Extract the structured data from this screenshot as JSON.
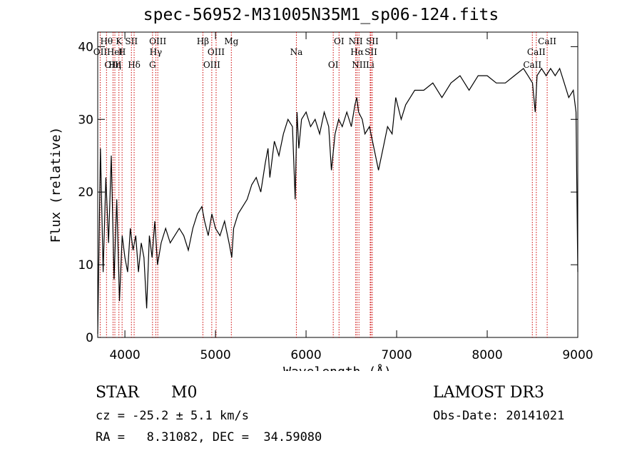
{
  "chart_data": {
    "type": "line",
    "title": "spec-56952-M31005N35M1_sp06-124.fits",
    "xlabel": "Wavelength (Å)",
    "ylabel": "Flux (relative)",
    "xlim": [
      3700,
      9000
    ],
    "ylim": [
      0,
      42
    ],
    "xticks": [
      4000,
      5000,
      6000,
      7000,
      8000,
      9000
    ],
    "yticks": [
      0,
      10,
      20,
      30,
      40
    ],
    "x": [
      3700,
      3730,
      3760,
      3790,
      3820,
      3850,
      3880,
      3910,
      3940,
      3970,
      4000,
      4030,
      4060,
      4090,
      4120,
      4150,
      4180,
      4210,
      4240,
      4270,
      4300,
      4330,
      4360,
      4400,
      4450,
      4500,
      4550,
      4600,
      4650,
      4700,
      4750,
      4800,
      4850,
      4880,
      4920,
      4960,
      5000,
      5050,
      5100,
      5150,
      5180,
      5200,
      5250,
      5300,
      5350,
      5400,
      5450,
      5500,
      5550,
      5580,
      5600,
      5650,
      5700,
      5750,
      5800,
      5850,
      5880,
      5900,
      5920,
      5950,
      6000,
      6050,
      6100,
      6150,
      6200,
      6250,
      6280,
      6320,
      6360,
      6400,
      6450,
      6500,
      6540,
      6560,
      6580,
      6620,
      6650,
      6700,
      6750,
      6800,
      6850,
      6900,
      6950,
      6990,
      7050,
      7100,
      7150,
      7200,
      7300,
      7400,
      7500,
      7600,
      7700,
      7800,
      7900,
      8000,
      8100,
      8200,
      8300,
      8400,
      8450,
      8500,
      8530,
      8550,
      8600,
      8650,
      8700,
      8750,
      8800,
      8850,
      8900,
      8950,
      8980,
      9000
    ],
    "y": [
      0.5,
      26,
      9,
      22,
      13,
      25,
      8,
      19,
      5,
      14,
      11,
      9,
      15,
      12,
      14,
      9,
      13,
      11,
      4,
      14,
      11,
      16,
      10,
      13,
      15,
      13,
      14,
      15,
      14,
      12,
      15,
      17,
      18,
      16,
      14,
      17,
      15,
      14,
      16,
      13,
      11,
      15,
      17,
      18,
      19,
      21,
      22,
      20,
      24,
      26,
      22,
      27,
      25,
      28,
      30,
      29,
      19,
      31,
      26,
      30,
      31,
      29,
      30,
      28,
      31,
      29,
      23,
      28,
      30,
      29,
      31,
      29,
      32,
      33,
      31,
      30,
      28,
      29,
      26,
      23,
      26,
      29,
      28,
      33,
      30,
      32,
      33,
      34,
      34,
      35,
      33,
      35,
      36,
      34,
      36,
      36,
      35,
      35,
      36,
      37,
      36,
      35,
      31,
      36,
      37,
      36,
      37,
      36,
      37,
      35,
      33,
      34,
      31,
      9
    ],
    "spectral_lines": [
      {
        "label": "Hθ",
        "x": 3797
      },
      {
        "label": "OII",
        "x": 3727
      },
      {
        "label": "OIII",
        "x": 3869
      },
      {
        "label": "K",
        "x": 3934
      },
      {
        "label": "HeI",
        "x": 3889
      },
      {
        "label": "Hη",
        "x": 3889
      },
      {
        "label": "SII",
        "x": 4072
      },
      {
        "label": "H",
        "x": 3969
      },
      {
        "label": "Hδ",
        "x": 4102
      },
      {
        "label": "OIII",
        "x": 4363
      },
      {
        "label": "Hγ",
        "x": 4341
      },
      {
        "label": "G",
        "x": 4305
      },
      {
        "label": "Hβ",
        "x": 4861
      },
      {
        "label": "OIII",
        "x": 5007
      },
      {
        "label": "OIII",
        "x": 4959
      },
      {
        "label": "Mg",
        "x": 5175
      },
      {
        "label": "Na",
        "x": 5893
      },
      {
        "label": "OI",
        "x": 6300
      },
      {
        "label": "OI",
        "x": 6364
      },
      {
        "label": "Hα",
        "x": 6563
      },
      {
        "label": "NII",
        "x": 6584
      },
      {
        "label": "NII",
        "x": 6548
      },
      {
        "label": "SII",
        "x": 6716
      },
      {
        "label": "Li",
        "x": 6708
      },
      {
        "label": "SII",
        "x": 6731
      },
      {
        "label": "CaII",
        "x": 8542
      },
      {
        "label": "CaII",
        "x": 8498
      },
      {
        "label": "CaII",
        "x": 8662
      }
    ]
  },
  "info": {
    "object_class": "STAR",
    "subclass": "M0",
    "survey": "LAMOST DR3",
    "redshift": "cz = -25.2 ± 5.1 km/s",
    "obs_date": "Obs-Date: 20141021",
    "coords": "RA =   8.31082, DEC =  34.59080"
  },
  "colors": {
    "line_marker": "#cc0000",
    "spectrum": "#000000"
  }
}
